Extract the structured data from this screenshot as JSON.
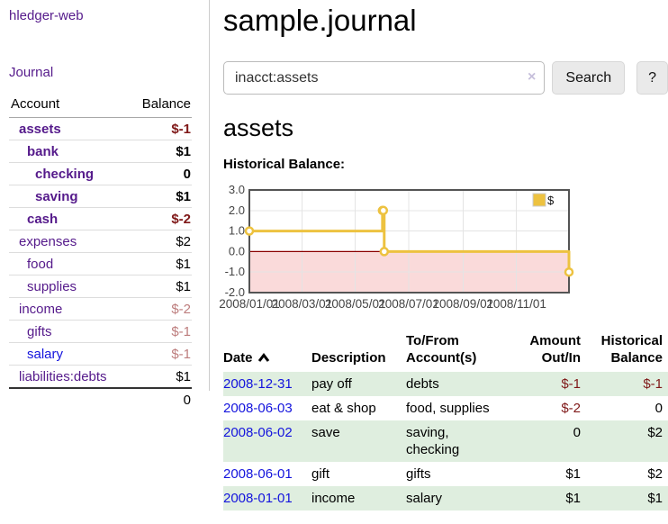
{
  "sidebar": {
    "app_title": "hledger-web",
    "journal_link": "Journal",
    "accounts_header": {
      "account": "Account",
      "balance": "Balance"
    },
    "accounts": [
      {
        "name": "assets",
        "indent": 0,
        "bold": true,
        "balance": "$-1",
        "neg": "strong"
      },
      {
        "name": "bank",
        "indent": 1,
        "bold": true,
        "balance": "$1",
        "neg": "none"
      },
      {
        "name": "checking",
        "indent": 2,
        "bold": true,
        "balance": "0",
        "neg": "none"
      },
      {
        "name": "saving",
        "indent": 2,
        "bold": true,
        "balance": "$1",
        "neg": "none"
      },
      {
        "name": "cash",
        "indent": 1,
        "bold": true,
        "balance": "$-2",
        "neg": "strong"
      },
      {
        "name": "expenses",
        "indent": 0,
        "bold": false,
        "balance": "$2",
        "neg": "none"
      },
      {
        "name": "food",
        "indent": 1,
        "bold": false,
        "balance": "$1",
        "neg": "none"
      },
      {
        "name": "supplies",
        "indent": 1,
        "bold": false,
        "balance": "$1",
        "neg": "none"
      },
      {
        "name": "income",
        "indent": 0,
        "bold": false,
        "balance": "$-2",
        "neg": "muted"
      },
      {
        "name": "gifts",
        "indent": 1,
        "bold": false,
        "balance": "$-1",
        "neg": "muted"
      },
      {
        "name": "salary",
        "indent": 1,
        "bold": false,
        "balance": "$-1",
        "neg": "muted",
        "blue": true
      },
      {
        "name": "liabilities:debts",
        "indent": 0,
        "bold": false,
        "balance": "$1",
        "neg": "none"
      }
    ],
    "total": "0"
  },
  "header": {
    "title": "sample.journal"
  },
  "search": {
    "value": "inacct:assets",
    "clear_label": "×",
    "button_label": "Search",
    "help_label": "?"
  },
  "account_page": {
    "title": "assets",
    "chart_label": "Historical Balance:"
  },
  "chart_data": {
    "type": "line",
    "title": "Historical Balance",
    "step": true,
    "x_range": [
      "2008-01-01",
      "2008-12-31"
    ],
    "ylim": [
      -2,
      3
    ],
    "y_ticks": [
      3.0,
      2.0,
      1.0,
      0.0,
      -1.0,
      -2.0
    ],
    "x_tick_labels": [
      "2008/01/01",
      "2008/03/01",
      "2008/05/01",
      "2008/07/01",
      "2008/09/01",
      "2008/11/01"
    ],
    "grid": true,
    "legend_position": "top-right",
    "series": [
      {
        "name": "$",
        "color": "#edc240",
        "points": [
          {
            "date": "2008-01-01",
            "value": 1
          },
          {
            "date": "2008-06-01",
            "value": 2
          },
          {
            "date": "2008-06-02",
            "value": 2
          },
          {
            "date": "2008-06-03",
            "value": 0
          },
          {
            "date": "2008-12-31",
            "value": -1
          }
        ]
      }
    ],
    "negative_fill": "#fadada",
    "zero_line_color": "#8b0000"
  },
  "register": {
    "columns": {
      "date": "Date",
      "description": "Description",
      "accounts": "To/From Account(s)",
      "amount": "Amount Out/In",
      "balance": "Historical Balance"
    },
    "rows": [
      {
        "date": "2008-12-31",
        "description": "pay off",
        "accounts": "debts",
        "amount": "$-1",
        "amount_neg": true,
        "balance": "$-1",
        "balance_neg": true
      },
      {
        "date": "2008-06-03",
        "description": "eat & shop",
        "accounts": "food, supplies",
        "amount": "$-2",
        "amount_neg": true,
        "balance": "0",
        "balance_neg": false
      },
      {
        "date": "2008-06-02",
        "description": "save",
        "accounts": "saving, checking",
        "amount": "0",
        "amount_neg": false,
        "balance": "$2",
        "balance_neg": false
      },
      {
        "date": "2008-06-01",
        "description": "gift",
        "accounts": "gifts",
        "amount": "$1",
        "amount_neg": false,
        "balance": "$2",
        "balance_neg": false
      },
      {
        "date": "2008-01-01",
        "description": "income",
        "accounts": "salary",
        "amount": "$1",
        "amount_neg": false,
        "balance": "$1",
        "balance_neg": false
      }
    ]
  },
  "colors": {
    "link_purple": "#551a8b",
    "link_blue": "#1414dd",
    "negative": "#7f1818",
    "negative_muted": "#bd7d7d",
    "row_stripe_green": "#dfeedf",
    "chart_series_yellow": "#edc240",
    "chart_negative_fill": "#fadada",
    "zero_line": "#8b0000",
    "chart_border": "#545454"
  }
}
